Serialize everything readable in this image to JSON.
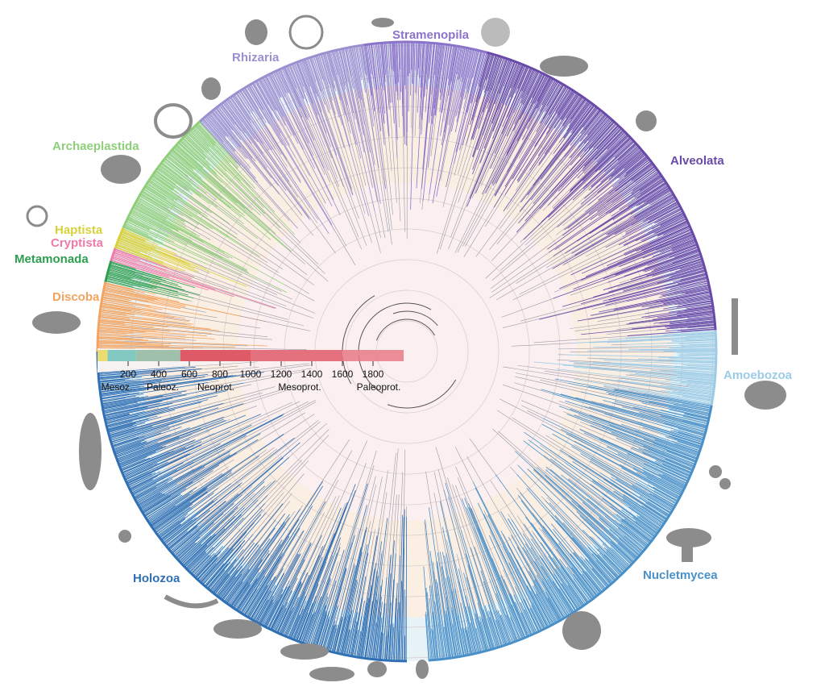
{
  "groups": [
    {
      "label": "Amoebozoa",
      "color": "#9ccbe6"
    },
    {
      "label": "Nucletmycea",
      "color": "#4a90c8"
    },
    {
      "label": "Holozoa",
      "color": "#2f6fb3"
    },
    {
      "label": "Discoba",
      "color": "#f4a460"
    },
    {
      "label": "Metamonada",
      "color": "#2e9e4f"
    },
    {
      "label": "Cryptista",
      "color": "#f07aa8"
    },
    {
      "label": "Haptista",
      "color": "#d9d13a"
    },
    {
      "label": "Archaeplastida",
      "color": "#8fcf7a"
    },
    {
      "label": "Rhizaria",
      "color": "#9b8fd0"
    },
    {
      "label": "Stramenopila",
      "color": "#8a73c9"
    },
    {
      "label": "Alveolata",
      "color": "#6a4aa8"
    }
  ],
  "timescale": {
    "ticks": [
      200,
      400,
      600,
      800,
      1000,
      1200,
      1400,
      1600,
      1800
    ],
    "eras": [
      "Mesoz.",
      "Paleoz.",
      "Neoprot.",
      "Mesoprot.",
      "Paleoprot."
    ]
  }
}
